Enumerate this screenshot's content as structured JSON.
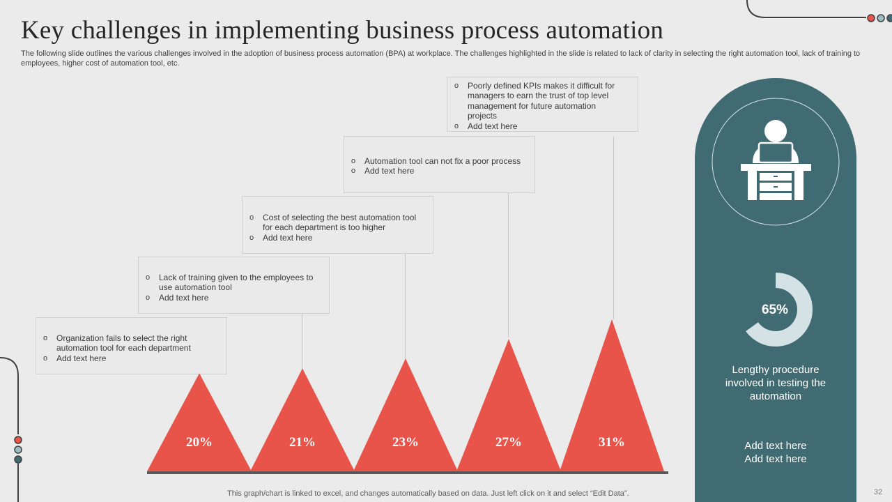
{
  "slide": {
    "title": "Key challenges in implementing business process automation",
    "subtitle": "The following slide outlines the various challenges involved in the adoption of business process automation (BPA) at workplace. The challenges highlighted in the slide is related to lack of clarity in selecting the right automation tool, lack of training to employees, higher cost of automation tool, etc.",
    "footer": "This graph/chart is linked to excel,  and changes automatically based on data. Just left click on it and select “Edit Data”.",
    "page_number": "32"
  },
  "colors": {
    "accent": "#e8534a",
    "panel": "#406b73",
    "ring_light": "#d4e2e5",
    "ring_dark": "#406b73"
  },
  "callouts": [
    {
      "lines": [
        "Organization fails to select the right automation tool for each department",
        "Add text here"
      ]
    },
    {
      "lines": [
        "Lack of training given to the employees to use automation tool",
        "Add text here"
      ]
    },
    {
      "lines": [
        "Cost of selecting the best automation tool for each department is too higher",
        "Add text here"
      ]
    },
    {
      "lines": [
        "Automation tool can not fix  a poor process",
        "Add text here"
      ]
    },
    {
      "lines": [
        "Poorly defined KPIs makes it difficult for managers to earn the trust of top level management for future automation projects",
        "Add text here"
      ]
    }
  ],
  "chart_data": {
    "type": "bar",
    "categories": [
      "Organization fails to select the right automation tool for each department",
      "Lack of training given to the employees to use automation tool",
      "Cost of selecting the best automation tool for each department is too higher",
      "Automation tool can not fix  a poor process",
      "Poorly defined KPIs makes it difficult for managers to earn the trust of top level management for future automation projects"
    ],
    "values": [
      20,
      21,
      23,
      27,
      31
    ],
    "value_labels": [
      "20%",
      "21%",
      "23%",
      "27%",
      "31%"
    ],
    "unit": "%",
    "marker": "triangle"
  },
  "side_panel": {
    "icon": "person-at-desk-icon",
    "donut": {
      "value": 65,
      "label": "65%"
    },
    "text": "Lengthy procedure involved in testing the automation",
    "add_text": [
      "Add text here",
      "Add text here"
    ]
  }
}
